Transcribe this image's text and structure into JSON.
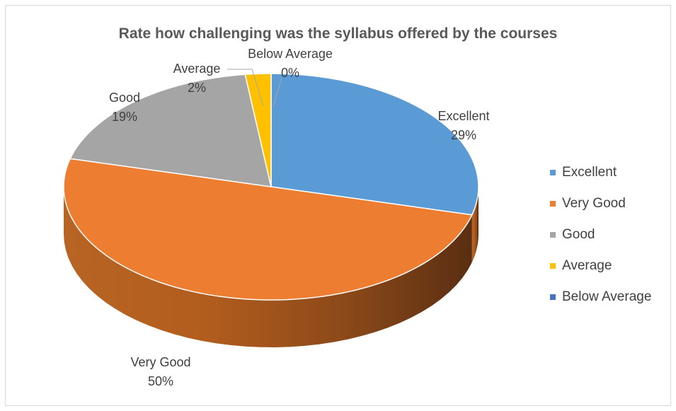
{
  "chart_data": {
    "type": "pie",
    "title": "Rate how challenging was the syllabus offered by the courses",
    "categories": [
      "Excellent",
      "Very Good",
      "Good",
      "Average",
      "Below Average"
    ],
    "values": [
      29,
      50,
      19,
      2,
      0
    ],
    "value_labels": [
      "29%",
      "50%",
      "19%",
      "2%",
      "0%"
    ],
    "colors": [
      "#5B9BD5",
      "#ED7D31",
      "#A5A5A5",
      "#FFC000",
      "#4472C4"
    ],
    "legend_position": "right",
    "style": "3d"
  }
}
